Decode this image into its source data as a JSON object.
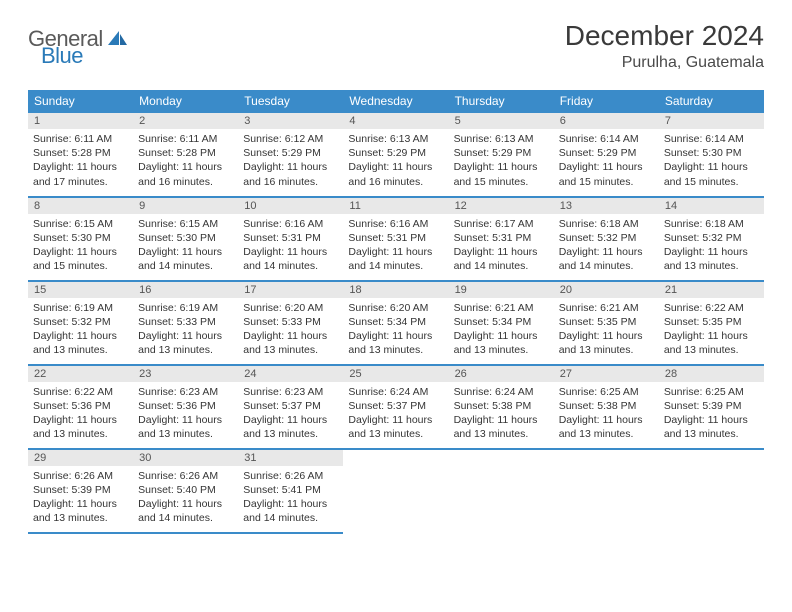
{
  "logo": {
    "part1": "General",
    "part2": "Blue"
  },
  "title": "December 2024",
  "subtitle": "Purulha, Guatemala",
  "header_bg": "#3a8bc9",
  "daynum_bg": "#e8e8e8",
  "weekdays": [
    "Sunday",
    "Monday",
    "Tuesday",
    "Wednesday",
    "Thursday",
    "Friday",
    "Saturday"
  ],
  "weeks": [
    [
      {
        "n": "1",
        "sr": "6:11 AM",
        "ss": "5:28 PM",
        "dl": "11 hours and 17 minutes."
      },
      {
        "n": "2",
        "sr": "6:11 AM",
        "ss": "5:28 PM",
        "dl": "11 hours and 16 minutes."
      },
      {
        "n": "3",
        "sr": "6:12 AM",
        "ss": "5:29 PM",
        "dl": "11 hours and 16 minutes."
      },
      {
        "n": "4",
        "sr": "6:13 AM",
        "ss": "5:29 PM",
        "dl": "11 hours and 16 minutes."
      },
      {
        "n": "5",
        "sr": "6:13 AM",
        "ss": "5:29 PM",
        "dl": "11 hours and 15 minutes."
      },
      {
        "n": "6",
        "sr": "6:14 AM",
        "ss": "5:29 PM",
        "dl": "11 hours and 15 minutes."
      },
      {
        "n": "7",
        "sr": "6:14 AM",
        "ss": "5:30 PM",
        "dl": "11 hours and 15 minutes."
      }
    ],
    [
      {
        "n": "8",
        "sr": "6:15 AM",
        "ss": "5:30 PM",
        "dl": "11 hours and 15 minutes."
      },
      {
        "n": "9",
        "sr": "6:15 AM",
        "ss": "5:30 PM",
        "dl": "11 hours and 14 minutes."
      },
      {
        "n": "10",
        "sr": "6:16 AM",
        "ss": "5:31 PM",
        "dl": "11 hours and 14 minutes."
      },
      {
        "n": "11",
        "sr": "6:16 AM",
        "ss": "5:31 PM",
        "dl": "11 hours and 14 minutes."
      },
      {
        "n": "12",
        "sr": "6:17 AM",
        "ss": "5:31 PM",
        "dl": "11 hours and 14 minutes."
      },
      {
        "n": "13",
        "sr": "6:18 AM",
        "ss": "5:32 PM",
        "dl": "11 hours and 14 minutes."
      },
      {
        "n": "14",
        "sr": "6:18 AM",
        "ss": "5:32 PM",
        "dl": "11 hours and 13 minutes."
      }
    ],
    [
      {
        "n": "15",
        "sr": "6:19 AM",
        "ss": "5:32 PM",
        "dl": "11 hours and 13 minutes."
      },
      {
        "n": "16",
        "sr": "6:19 AM",
        "ss": "5:33 PM",
        "dl": "11 hours and 13 minutes."
      },
      {
        "n": "17",
        "sr": "6:20 AM",
        "ss": "5:33 PM",
        "dl": "11 hours and 13 minutes."
      },
      {
        "n": "18",
        "sr": "6:20 AM",
        "ss": "5:34 PM",
        "dl": "11 hours and 13 minutes."
      },
      {
        "n": "19",
        "sr": "6:21 AM",
        "ss": "5:34 PM",
        "dl": "11 hours and 13 minutes."
      },
      {
        "n": "20",
        "sr": "6:21 AM",
        "ss": "5:35 PM",
        "dl": "11 hours and 13 minutes."
      },
      {
        "n": "21",
        "sr": "6:22 AM",
        "ss": "5:35 PM",
        "dl": "11 hours and 13 minutes."
      }
    ],
    [
      {
        "n": "22",
        "sr": "6:22 AM",
        "ss": "5:36 PM",
        "dl": "11 hours and 13 minutes."
      },
      {
        "n": "23",
        "sr": "6:23 AM",
        "ss": "5:36 PM",
        "dl": "11 hours and 13 minutes."
      },
      {
        "n": "24",
        "sr": "6:23 AM",
        "ss": "5:37 PM",
        "dl": "11 hours and 13 minutes."
      },
      {
        "n": "25",
        "sr": "6:24 AM",
        "ss": "5:37 PM",
        "dl": "11 hours and 13 minutes."
      },
      {
        "n": "26",
        "sr": "6:24 AM",
        "ss": "5:38 PM",
        "dl": "11 hours and 13 minutes."
      },
      {
        "n": "27",
        "sr": "6:25 AM",
        "ss": "5:38 PM",
        "dl": "11 hours and 13 minutes."
      },
      {
        "n": "28",
        "sr": "6:25 AM",
        "ss": "5:39 PM",
        "dl": "11 hours and 13 minutes."
      }
    ],
    [
      {
        "n": "29",
        "sr": "6:26 AM",
        "ss": "5:39 PM",
        "dl": "11 hours and 13 minutes."
      },
      {
        "n": "30",
        "sr": "6:26 AM",
        "ss": "5:40 PM",
        "dl": "11 hours and 14 minutes."
      },
      {
        "n": "31",
        "sr": "6:26 AM",
        "ss": "5:41 PM",
        "dl": "11 hours and 14 minutes."
      },
      null,
      null,
      null,
      null
    ]
  ],
  "labels": {
    "sunrise": "Sunrise:",
    "sunset": "Sunset:",
    "daylight": "Daylight:"
  }
}
